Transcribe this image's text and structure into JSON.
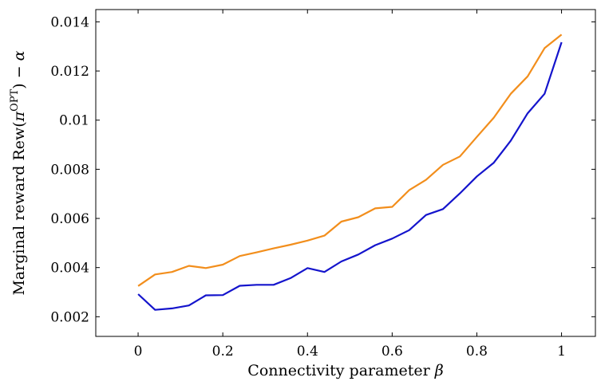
{
  "chart_data": {
    "type": "line",
    "xlabel_text": "Connectivity parameter ",
    "xlabel_symbol": "β",
    "ylabel_text": "Marginal reward Rew(",
    "ylabel_pi": "π",
    "ylabel_sup": "OPT",
    "ylabel_tail": ") − ",
    "ylabel_alpha": "α",
    "xlim": [
      -0.1,
      1.08
    ],
    "ylim": [
      0.0012,
      0.0145
    ],
    "xticks": [
      0,
      0.2,
      0.4,
      0.6,
      0.8,
      1
    ],
    "xtick_labels": [
      "0",
      "0.2",
      "0.4",
      "0.6",
      "0.8",
      "1"
    ],
    "yticks": [
      0.002,
      0.004,
      0.006,
      0.008,
      0.01,
      0.012,
      0.014
    ],
    "ytick_labels": [
      "0.002",
      "0.004",
      "0.006",
      "0.008",
      "0.01",
      "0.012",
      "0.014"
    ],
    "grid": false,
    "x": [
      0,
      0.04,
      0.08,
      0.12,
      0.16,
      0.2,
      0.24,
      0.28,
      0.32,
      0.36,
      0.4,
      0.44,
      0.48,
      0.52,
      0.56,
      0.6,
      0.64,
      0.68,
      0.72,
      0.76,
      0.8,
      0.84,
      0.88,
      0.92,
      0.96,
      1
    ],
    "series": [
      {
        "color": "#f28e1c",
        "values": [
          0.00325,
          0.00372,
          0.00382,
          0.00407,
          0.00398,
          0.00412,
          0.00447,
          0.00462,
          0.00478,
          0.00493,
          0.0051,
          0.0053,
          0.00587,
          0.00605,
          0.00641,
          0.00647,
          0.00715,
          0.00757,
          0.00818,
          0.00852,
          0.00932,
          0.0101,
          0.01107,
          0.01178,
          0.01293,
          0.01348
        ]
      },
      {
        "color": "#1414cc",
        "values": [
          0.00292,
          0.00228,
          0.00234,
          0.00246,
          0.00287,
          0.00288,
          0.00326,
          0.0033,
          0.0033,
          0.00357,
          0.00398,
          0.00382,
          0.00425,
          0.00453,
          0.00491,
          0.00518,
          0.00552,
          0.00614,
          0.00638,
          0.00702,
          0.00771,
          0.00827,
          0.00916,
          0.01028,
          0.01107,
          0.01317
        ]
      }
    ]
  }
}
